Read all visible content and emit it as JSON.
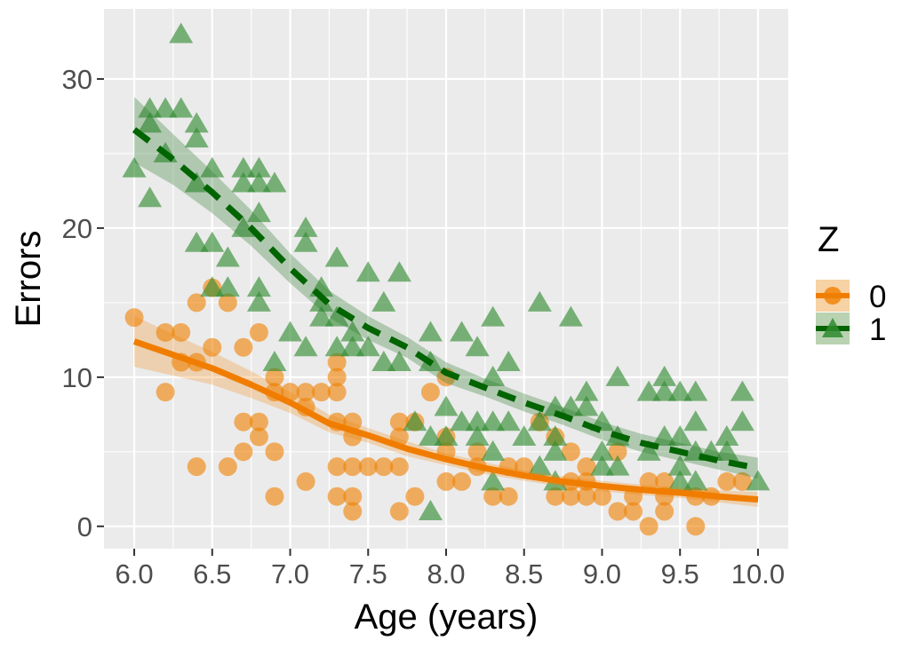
{
  "figure": {
    "background": "#FFFFFF",
    "panel_background": "#EBEBEB",
    "grid_color": "#FFFFFF",
    "tick_color": "#333333",
    "tick_label_color": "#4D4D4D",
    "axis_title_color": "#000000"
  },
  "axes": {
    "x_title": "Age (years)",
    "y_title": "Errors",
    "x_tick_labels": [
      "6.0",
      "6.5",
      "7.0",
      "7.5",
      "8.0",
      "8.5",
      "9.0",
      "9.5",
      "10.0"
    ],
    "x_tick_values": [
      6.0,
      6.5,
      7.0,
      7.5,
      8.0,
      8.5,
      9.0,
      9.5,
      10.0
    ],
    "x_minor_values": [
      6.25,
      6.75,
      7.25,
      7.75,
      8.25,
      8.75,
      9.25,
      9.75
    ],
    "y_tick_labels": [
      "0",
      "10",
      "20",
      "30"
    ],
    "y_tick_values": [
      0,
      10,
      20,
      30
    ],
    "y_minor_values": [
      5,
      15,
      25
    ],
    "xlim": [
      5.806,
      10.194
    ],
    "ylim": [
      -1.5,
      34.7
    ]
  },
  "legend": {
    "title": "Z",
    "entries": [
      {
        "label": "0",
        "marker": "circle",
        "key_bg": "#F7D2A4",
        "marker_color": "#F08000",
        "line_color": "#F07D00"
      },
      {
        "label": "1",
        "marker": "triangle",
        "key_bg": "#B9D2B1",
        "marker_color": "#2F8B2F",
        "line_color": "#006400"
      }
    ]
  },
  "chart_data": {
    "type": "scatter",
    "title": "",
    "xlabel": "Age (years)",
    "ylabel": "Errors",
    "xlim": [
      5.8,
      10.2
    ],
    "ylim": [
      -1.5,
      34.7
    ],
    "grid": true,
    "legend_position": "right",
    "series": [
      {
        "name": "0",
        "marker": "circle",
        "point_color": "#F08000",
        "point_opacity": 0.6,
        "points": [
          [
            6.0,
            14
          ],
          [
            6.4,
            15
          ],
          [
            6.5,
            16
          ],
          [
            6.6,
            15
          ],
          [
            6.2,
            13
          ],
          [
            6.3,
            13
          ],
          [
            6.8,
            13
          ],
          [
            6.5,
            12
          ],
          [
            6.7,
            12
          ],
          [
            6.3,
            11
          ],
          [
            6.4,
            11
          ],
          [
            6.2,
            9
          ],
          [
            6.9,
            10
          ],
          [
            6.9,
            9
          ],
          [
            7.0,
            9
          ],
          [
            7.1,
            9
          ],
          [
            7.2,
            9
          ],
          [
            7.1,
            8
          ],
          [
            6.7,
            7
          ],
          [
            6.8,
            7
          ],
          [
            6.8,
            6
          ],
          [
            6.7,
            5
          ],
          [
            6.9,
            5
          ],
          [
            6.4,
            4
          ],
          [
            6.6,
            4
          ],
          [
            6.9,
            2
          ],
          [
            7.1,
            3
          ],
          [
            7.3,
            11
          ],
          [
            7.3,
            10
          ],
          [
            7.3,
            9
          ],
          [
            7.3,
            7
          ],
          [
            7.4,
            7
          ],
          [
            7.4,
            6
          ],
          [
            7.3,
            4
          ],
          [
            7.4,
            4
          ],
          [
            7.5,
            4
          ],
          [
            7.6,
            4
          ],
          [
            7.7,
            4
          ],
          [
            7.7,
            7
          ],
          [
            7.8,
            7
          ],
          [
            7.7,
            6
          ],
          [
            7.9,
            9
          ],
          [
            8.0,
            10
          ],
          [
            8.0,
            6
          ],
          [
            8.0,
            5
          ],
          [
            8.2,
            5
          ],
          [
            8.2,
            4
          ],
          [
            8.0,
            3
          ],
          [
            8.1,
            3
          ],
          [
            8.3,
            2
          ],
          [
            8.4,
            2
          ],
          [
            8.4,
            4
          ],
          [
            8.5,
            4
          ],
          [
            8.6,
            7
          ],
          [
            8.7,
            6
          ],
          [
            8.8,
            5
          ],
          [
            8.8,
            3
          ],
          [
            7.3,
            2
          ],
          [
            7.4,
            2
          ],
          [
            7.4,
            1
          ],
          [
            7.7,
            1
          ],
          [
            7.8,
            2
          ],
          [
            8.7,
            2
          ],
          [
            8.8,
            2
          ],
          [
            8.9,
            2
          ],
          [
            8.9,
            3
          ],
          [
            9.0,
            2
          ],
          [
            8.9,
            4
          ],
          [
            9.1,
            5
          ],
          [
            9.1,
            1
          ],
          [
            9.2,
            1
          ],
          [
            9.2,
            2
          ],
          [
            9.3,
            0
          ],
          [
            9.3,
            3
          ],
          [
            9.4,
            1
          ],
          [
            9.4,
            2
          ],
          [
            9.4,
            3
          ],
          [
            9.6,
            0
          ],
          [
            9.6,
            2
          ],
          [
            9.7,
            2
          ],
          [
            9.8,
            3
          ],
          [
            9.9,
            3
          ]
        ],
        "smooth": {
          "line_style": "solid",
          "line_color": "#F07D00",
          "line_width": 7,
          "band_color": "rgba(240,128,0,0.25)",
          "x": [
            6.0,
            6.25,
            6.5,
            6.75,
            7.0,
            7.25,
            7.5,
            7.75,
            8.0,
            8.25,
            8.5,
            8.75,
            9.0,
            9.25,
            9.5,
            9.75,
            10.0
          ],
          "y": [
            12.4,
            11.5,
            10.6,
            9.5,
            8.3,
            6.9,
            6.1,
            5.2,
            4.5,
            3.9,
            3.4,
            3.0,
            2.7,
            2.45,
            2.25,
            2.0,
            1.8
          ],
          "ci_upper": [
            14.1,
            12.9,
            11.7,
            10.4,
            9.0,
            7.5,
            6.6,
            5.7,
            4.9,
            4.3,
            3.75,
            3.35,
            3.05,
            2.8,
            2.6,
            2.4,
            2.3
          ],
          "ci_lower": [
            10.7,
            10.1,
            9.5,
            8.6,
            7.6,
            6.3,
            5.6,
            4.7,
            4.1,
            3.5,
            3.05,
            2.65,
            2.35,
            2.1,
            1.9,
            1.6,
            1.3
          ]
        }
      },
      {
        "name": "1",
        "marker": "triangle",
        "point_color": "#2F8B2F",
        "point_opacity": 0.62,
        "points": [
          [
            6.3,
            33
          ],
          [
            6.1,
            28
          ],
          [
            6.2,
            28
          ],
          [
            6.3,
            28
          ],
          [
            6.1,
            27
          ],
          [
            6.4,
            27
          ],
          [
            6.4,
            26
          ],
          [
            6.0,
            24
          ],
          [
            6.2,
            25
          ],
          [
            6.1,
            22
          ],
          [
            6.5,
            24
          ],
          [
            6.7,
            24
          ],
          [
            6.8,
            24
          ],
          [
            6.4,
            23
          ],
          [
            6.7,
            23
          ],
          [
            6.8,
            23
          ],
          [
            6.9,
            23
          ],
          [
            6.8,
            21
          ],
          [
            7.1,
            20
          ],
          [
            6.4,
            19
          ],
          [
            6.5,
            19
          ],
          [
            6.6,
            18
          ],
          [
            6.7,
            20
          ],
          [
            7.1,
            19
          ],
          [
            7.3,
            18
          ],
          [
            7.5,
            17
          ],
          [
            7.7,
            17
          ],
          [
            6.5,
            16
          ],
          [
            6.6,
            16
          ],
          [
            6.8,
            16
          ],
          [
            6.8,
            15
          ],
          [
            7.2,
            16
          ],
          [
            7.2,
            15
          ],
          [
            7.6,
            15
          ],
          [
            7.0,
            13
          ],
          [
            7.1,
            12
          ],
          [
            7.2,
            14
          ],
          [
            6.9,
            11
          ],
          [
            7.3,
            14
          ],
          [
            7.4,
            13
          ],
          [
            7.3,
            12
          ],
          [
            7.4,
            12
          ],
          [
            7.5,
            12
          ],
          [
            7.6,
            11
          ],
          [
            7.7,
            11
          ],
          [
            7.9,
            11
          ],
          [
            7.9,
            13
          ],
          [
            8.1,
            13
          ],
          [
            8.3,
            14
          ],
          [
            8.2,
            12
          ],
          [
            8.4,
            11
          ],
          [
            8.3,
            10
          ],
          [
            8.6,
            15
          ],
          [
            8.8,
            14
          ],
          [
            8.0,
            8
          ],
          [
            8.1,
            7
          ],
          [
            8.2,
            7
          ],
          [
            8.3,
            7
          ],
          [
            8.4,
            7
          ],
          [
            8.2,
            6
          ],
          [
            8.3,
            5
          ],
          [
            7.8,
            7
          ],
          [
            7.9,
            6
          ],
          [
            8.0,
            6
          ],
          [
            8.5,
            6
          ],
          [
            8.6,
            4
          ],
          [
            8.7,
            3
          ],
          [
            8.3,
            3
          ],
          [
            7.9,
            1
          ],
          [
            8.6,
            7
          ],
          [
            8.7,
            8
          ],
          [
            8.8,
            8
          ],
          [
            8.9,
            8
          ],
          [
            8.9,
            9
          ],
          [
            8.7,
            6
          ],
          [
            8.7,
            5
          ],
          [
            9.0,
            7
          ],
          [
            9.1,
            6
          ],
          [
            9.0,
            5
          ],
          [
            9.1,
            4
          ],
          [
            9.0,
            4
          ],
          [
            9.1,
            10
          ],
          [
            9.3,
            9
          ],
          [
            9.4,
            10
          ],
          [
            9.4,
            9
          ],
          [
            9.5,
            9
          ],
          [
            9.6,
            9
          ],
          [
            9.9,
            9
          ],
          [
            9.3,
            5
          ],
          [
            9.4,
            6
          ],
          [
            9.5,
            6
          ],
          [
            9.5,
            4
          ],
          [
            9.5,
            3
          ],
          [
            9.6,
            5
          ],
          [
            9.6,
            3
          ],
          [
            9.7,
            5
          ],
          [
            9.6,
            7
          ],
          [
            9.8,
            6
          ],
          [
            9.8,
            5
          ],
          [
            9.9,
            7
          ],
          [
            10.0,
            3
          ]
        ],
        "smooth": {
          "line_style": "dashed",
          "line_color": "#006400",
          "line_width": 7,
          "band_color": "rgba(40,120,40,0.3)",
          "x": [
            6.0,
            6.25,
            6.5,
            6.75,
            7.0,
            7.25,
            7.5,
            7.75,
            8.0,
            8.25,
            8.5,
            8.75,
            9.0,
            9.25,
            9.5,
            9.75,
            10.0
          ],
          "y": [
            26.6,
            24.6,
            22.4,
            20.0,
            17.3,
            14.9,
            13.3,
            12.0,
            10.3,
            9.3,
            8.3,
            7.4,
            6.4,
            5.6,
            5.0,
            4.4,
            3.9
          ],
          "ci_upper": [
            28.8,
            26.3,
            23.8,
            21.2,
            18.3,
            15.8,
            14.1,
            12.7,
            11.0,
            9.9,
            8.9,
            8.0,
            7.0,
            6.2,
            5.6,
            5.0,
            4.6
          ],
          "ci_lower": [
            24.4,
            22.9,
            21.0,
            18.8,
            16.3,
            14.0,
            12.5,
            11.3,
            9.6,
            8.7,
            7.7,
            6.8,
            5.8,
            5.0,
            4.4,
            3.8,
            3.2
          ]
        }
      }
    ]
  }
}
